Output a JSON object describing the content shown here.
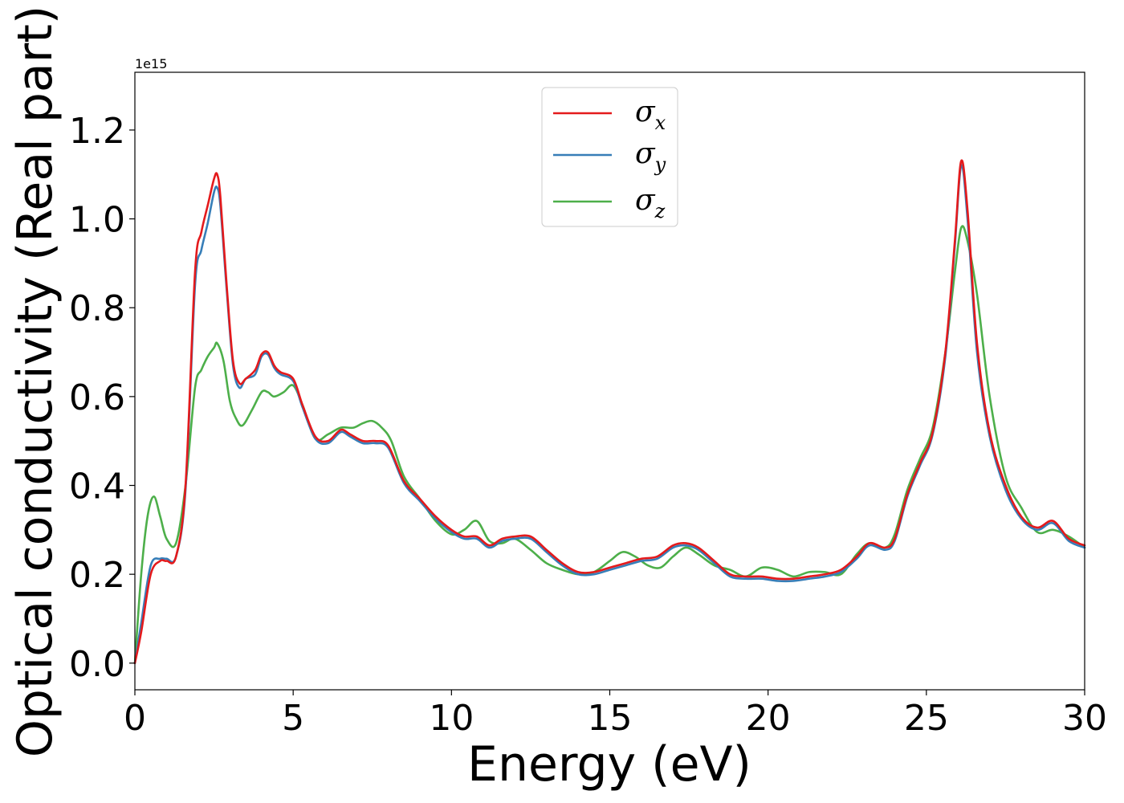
{
  "chart_data": {
    "type": "line",
    "xlabel": "Energy (eV)",
    "ylabel": "Optical conductivity (Real part)",
    "y_offset_label": "1e15",
    "xlim": [
      0,
      30
    ],
    "ylim": [
      -0.06,
      1.33
    ],
    "xticks": [
      0,
      5,
      10,
      15,
      20,
      25,
      30
    ],
    "xtick_labels": [
      "0",
      "5",
      "10",
      "15",
      "20",
      "25",
      "30"
    ],
    "yticks": [
      0.0,
      0.2,
      0.4,
      0.6,
      0.8,
      1.0,
      1.2
    ],
    "ytick_labels": [
      "0.0",
      "0.2",
      "0.4",
      "0.6",
      "0.8",
      "1.0",
      "1.2"
    ],
    "grid": false,
    "legend_placement": "upper-center",
    "series": [
      {
        "name": "σx",
        "symbol": "σ",
        "subscript": "x",
        "color": "#e41a1c",
        "x": [
          0,
          0.2,
          0.5,
          0.8,
          1.0,
          1.3,
          1.6,
          1.9,
          2.1,
          2.3,
          2.5,
          2.6,
          2.7,
          2.9,
          3.1,
          3.3,
          3.5,
          3.8,
          4.0,
          4.2,
          4.4,
          4.6,
          5.0,
          5.3,
          5.7,
          6.1,
          6.5,
          6.8,
          7.2,
          7.6,
          8.0,
          8.5,
          9.0,
          9.5,
          10.0,
          10.4,
          10.8,
          11.2,
          11.6,
          12.0,
          12.5,
          13.0,
          13.5,
          14.0,
          14.5,
          15.0,
          15.5,
          16.0,
          16.5,
          17.0,
          17.4,
          17.8,
          18.3,
          18.8,
          19.3,
          19.8,
          20.3,
          20.8,
          21.3,
          21.8,
          22.3,
          22.8,
          23.2,
          23.7,
          24.0,
          24.4,
          24.8,
          25.2,
          25.6,
          25.9,
          26.1,
          26.3,
          26.6,
          27.0,
          27.5,
          28.0,
          28.5,
          29.0,
          29.5,
          30.0
        ],
        "values": [
          0.0,
          0.07,
          0.2,
          0.23,
          0.23,
          0.24,
          0.4,
          0.88,
          0.97,
          1.03,
          1.09,
          1.1,
          1.05,
          0.85,
          0.68,
          0.63,
          0.64,
          0.66,
          0.695,
          0.7,
          0.67,
          0.655,
          0.64,
          0.58,
          0.51,
          0.5,
          0.525,
          0.515,
          0.5,
          0.5,
          0.49,
          0.41,
          0.37,
          0.33,
          0.3,
          0.285,
          0.285,
          0.265,
          0.28,
          0.285,
          0.285,
          0.255,
          0.225,
          0.205,
          0.205,
          0.215,
          0.225,
          0.235,
          0.24,
          0.265,
          0.27,
          0.26,
          0.23,
          0.2,
          0.195,
          0.195,
          0.19,
          0.19,
          0.195,
          0.2,
          0.21,
          0.24,
          0.27,
          0.26,
          0.28,
          0.38,
          0.45,
          0.52,
          0.7,
          0.95,
          1.13,
          1.02,
          0.72,
          0.52,
          0.4,
          0.33,
          0.305,
          0.32,
          0.28,
          0.265
        ]
      },
      {
        "name": "σy",
        "symbol": "σ",
        "subscript": "y",
        "color": "#377eb8",
        "x": [
          0,
          0.2,
          0.5,
          0.8,
          1.0,
          1.3,
          1.6,
          1.9,
          2.1,
          2.3,
          2.5,
          2.6,
          2.7,
          2.9,
          3.1,
          3.3,
          3.5,
          3.8,
          4.0,
          4.2,
          4.4,
          4.6,
          5.0,
          5.3,
          5.7,
          6.1,
          6.5,
          6.8,
          7.2,
          7.6,
          8.0,
          8.5,
          9.0,
          9.5,
          10.0,
          10.4,
          10.8,
          11.2,
          11.6,
          12.0,
          12.5,
          13.0,
          13.5,
          14.0,
          14.5,
          15.0,
          15.5,
          16.0,
          16.5,
          17.0,
          17.4,
          17.8,
          18.3,
          18.8,
          19.3,
          19.8,
          20.3,
          20.8,
          21.3,
          21.8,
          22.3,
          22.8,
          23.2,
          23.7,
          24.0,
          24.4,
          24.8,
          25.2,
          25.6,
          25.9,
          26.1,
          26.3,
          26.6,
          27.0,
          27.5,
          28.0,
          28.5,
          29.0,
          29.5,
          30.0
        ],
        "values": [
          0.0,
          0.09,
          0.22,
          0.235,
          0.235,
          0.24,
          0.39,
          0.85,
          0.93,
          0.99,
          1.06,
          1.07,
          1.03,
          0.84,
          0.67,
          0.62,
          0.64,
          0.65,
          0.69,
          0.695,
          0.665,
          0.65,
          0.635,
          0.575,
          0.505,
          0.495,
          0.52,
          0.51,
          0.495,
          0.495,
          0.485,
          0.405,
          0.365,
          0.325,
          0.295,
          0.28,
          0.28,
          0.26,
          0.275,
          0.28,
          0.28,
          0.25,
          0.22,
          0.2,
          0.2,
          0.21,
          0.22,
          0.23,
          0.235,
          0.26,
          0.265,
          0.255,
          0.225,
          0.195,
          0.19,
          0.19,
          0.185,
          0.185,
          0.19,
          0.195,
          0.205,
          0.235,
          0.265,
          0.255,
          0.275,
          0.375,
          0.445,
          0.515,
          0.69,
          0.94,
          1.12,
          1.0,
          0.7,
          0.51,
          0.39,
          0.325,
          0.3,
          0.315,
          0.275,
          0.26
        ]
      },
      {
        "name": "σz",
        "symbol": "σ",
        "subscript": "z",
        "color": "#4daf4a",
        "x": [
          0,
          0.2,
          0.4,
          0.6,
          0.8,
          1.0,
          1.3,
          1.6,
          1.9,
          2.1,
          2.3,
          2.5,
          2.6,
          2.8,
          3.0,
          3.2,
          3.4,
          3.7,
          4.0,
          4.2,
          4.4,
          4.7,
          5.0,
          5.3,
          5.7,
          6.1,
          6.5,
          6.9,
          7.2,
          7.5,
          7.8,
          8.1,
          8.5,
          9.0,
          9.5,
          10.0,
          10.4,
          10.8,
          11.2,
          11.6,
          12.0,
          12.5,
          13.0,
          13.5,
          14.0,
          14.5,
          15.0,
          15.4,
          15.8,
          16.2,
          16.6,
          17.0,
          17.4,
          17.8,
          18.3,
          18.8,
          19.3,
          19.8,
          20.3,
          20.8,
          21.3,
          21.8,
          22.3,
          22.8,
          23.2,
          23.7,
          24.0,
          24.4,
          24.8,
          25.2,
          25.6,
          25.9,
          26.1,
          26.3,
          26.6,
          27.0,
          27.5,
          28.0,
          28.5,
          29.0,
          29.5,
          30.0
        ],
        "values": [
          0.0,
          0.2,
          0.33,
          0.375,
          0.33,
          0.28,
          0.27,
          0.4,
          0.62,
          0.66,
          0.69,
          0.71,
          0.72,
          0.68,
          0.59,
          0.55,
          0.535,
          0.57,
          0.61,
          0.61,
          0.6,
          0.61,
          0.625,
          0.58,
          0.505,
          0.515,
          0.53,
          0.53,
          0.54,
          0.545,
          0.53,
          0.5,
          0.42,
          0.37,
          0.32,
          0.29,
          0.3,
          0.32,
          0.275,
          0.27,
          0.28,
          0.255,
          0.225,
          0.21,
          0.2,
          0.205,
          0.23,
          0.25,
          0.24,
          0.22,
          0.215,
          0.24,
          0.26,
          0.245,
          0.22,
          0.21,
          0.195,
          0.215,
          0.21,
          0.195,
          0.205,
          0.205,
          0.2,
          0.245,
          0.27,
          0.26,
          0.29,
          0.39,
          0.46,
          0.53,
          0.7,
          0.88,
          0.98,
          0.95,
          0.83,
          0.6,
          0.42,
          0.35,
          0.295,
          0.3,
          0.285,
          0.26
        ]
      }
    ]
  }
}
